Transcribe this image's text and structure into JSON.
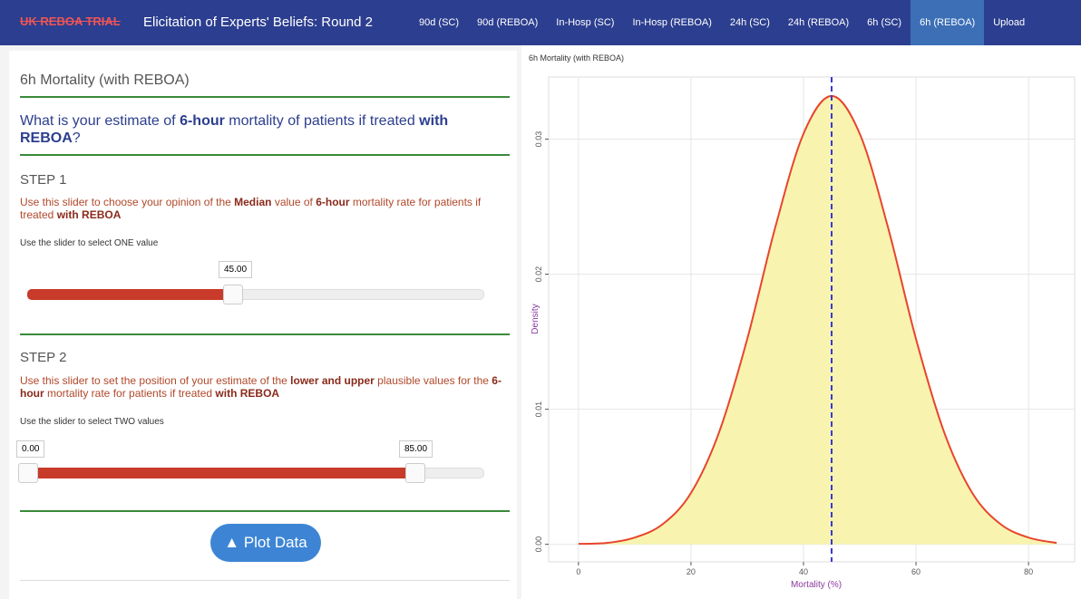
{
  "navbar": {
    "brand": "UK REBOA TRIAL",
    "title": "Elicitation of Experts' Beliefs: Round 2",
    "tabs": [
      "90d (SC)",
      "90d (REBOA)",
      "In-Hosp (SC)",
      "In-Hosp (REBOA)",
      "24h (SC)",
      "24h (REBOA)",
      "6h (SC)",
      "6h (REBOA)",
      "Upload"
    ],
    "active_tab": 7
  },
  "panel": {
    "heading": "6h Mortality (with REBOA)",
    "question": [
      "What is your estimate of ",
      "6-hour",
      " mortality of patients if treated ",
      "with REBOA",
      "?"
    ],
    "step1": {
      "title": "STEP 1",
      "text": [
        "Use this slider to choose your opinion of the ",
        "Median",
        " value of ",
        "6-hour",
        " mortality rate for patients if treated ",
        "with REBOA"
      ],
      "hint": "Use the slider to select ONE value",
      "value": "45.00"
    },
    "step2": {
      "title": "STEP 2",
      "text": [
        "Use this slider to set the position of your estimate of the ",
        "lower and upper",
        " plausible values for the ",
        "6-hour",
        " mortality rate for patients if treated ",
        "with REBOA"
      ],
      "hint": "Use the slider to select TWO values",
      "low": "0.00",
      "high": "85.00"
    },
    "button": "Plot Data"
  },
  "chart_data": {
    "type": "area",
    "title": "6h Mortality (with REBOA)",
    "x_label": "Mortality (%)",
    "y_label": "Density",
    "x": [
      0,
      5,
      10,
      15,
      20,
      25,
      30,
      35,
      40,
      45,
      50,
      55,
      60,
      65,
      70,
      75,
      80,
      85
    ],
    "values": [
      3e-05,
      0.0001,
      0.0005,
      0.0015,
      0.0038,
      0.0083,
      0.0152,
      0.0235,
      0.0304,
      0.0332,
      0.0304,
      0.0235,
      0.0152,
      0.0083,
      0.0038,
      0.0015,
      0.0005,
      0.0001
    ],
    "line_color": "#e8452c",
    "fill_color": "#f8f4b0",
    "vline": 45,
    "vline_color": "#3a3acc",
    "xlim": [
      -5.3,
      88.2
    ],
    "ylim": [
      -0.0013,
      0.0346
    ],
    "xticks": [
      0,
      20,
      40,
      60,
      80
    ],
    "yticks": [
      {
        "value": 0,
        "label": "0.00"
      },
      {
        "value": 0.01,
        "label": "0.01"
      },
      {
        "value": 0.02,
        "label": "0.02"
      },
      {
        "value": 0.03,
        "label": "0.03"
      }
    ],
    "grid": true
  }
}
